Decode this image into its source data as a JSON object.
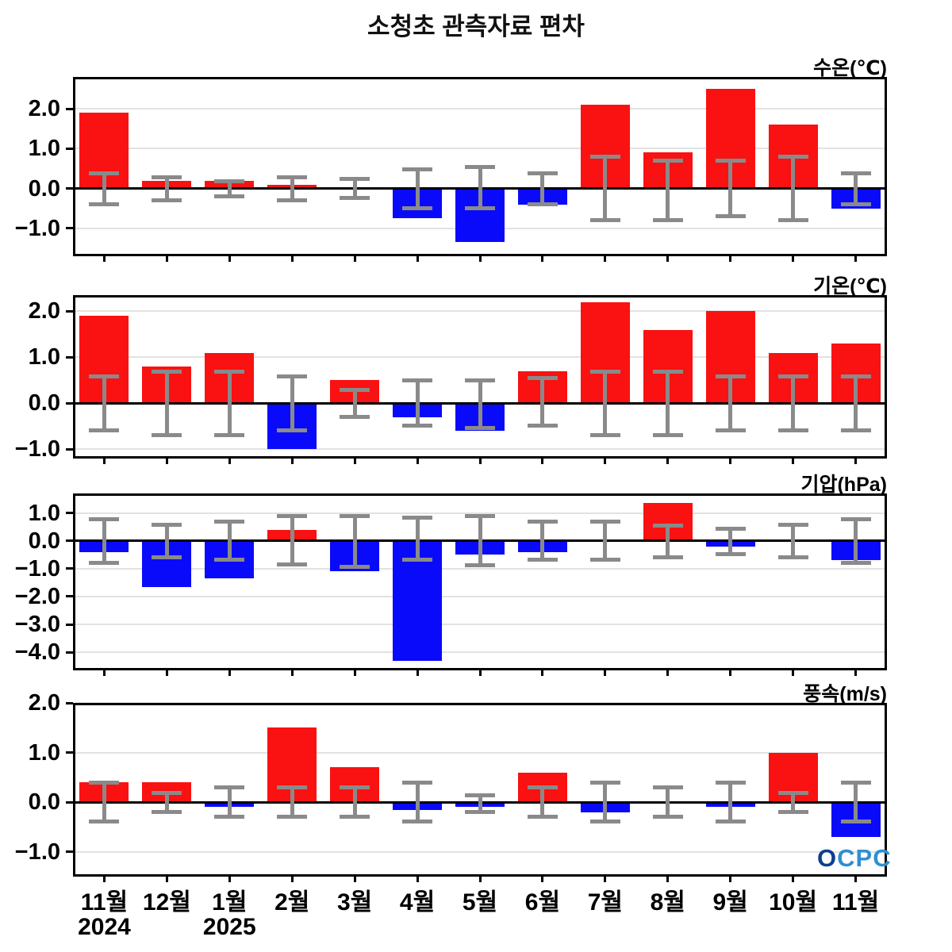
{
  "title": "소청초 관측자료 편차",
  "logo": {
    "text": "OCPC"
  },
  "colors": {
    "positive_bar": "#fa1111",
    "negative_bar": "#0a0afa",
    "zero_bar": "#aaaaaa",
    "error_bar": "#8a8a8a",
    "grid": "#e2e2e2",
    "axis": "#000000",
    "logo_primary": "#0d3f8f",
    "logo_secondary": "#2e8fd2"
  },
  "x_axis": {
    "months": [
      "11월",
      "12월",
      "1월",
      "2월",
      "3월",
      "4월",
      "5월",
      "6월",
      "7월",
      "8월",
      "9월",
      "10월",
      "11월"
    ],
    "years": [
      {
        "label": "2024",
        "month_index": 0
      },
      {
        "label": "2025",
        "month_index": 2
      }
    ]
  },
  "chart_data": [
    {
      "type": "bar",
      "title": "수온(℃)",
      "categories": [
        "11월",
        "12월",
        "1월",
        "2월",
        "3월",
        "4월",
        "5월",
        "6월",
        "7월",
        "8월",
        "9월",
        "10월",
        "11월"
      ],
      "values": [
        1.9,
        0.2,
        0.2,
        0.1,
        0.0,
        -0.75,
        -1.35,
        -0.4,
        2.1,
        0.9,
        2.5,
        1.6,
        -0.5
      ],
      "error_plus": [
        0.4,
        0.3,
        0.2,
        0.3,
        0.25,
        0.5,
        0.55,
        0.4,
        0.8,
        0.7,
        0.7,
        0.8,
        0.4
      ],
      "error_minus": [
        0.4,
        0.3,
        0.2,
        0.3,
        0.25,
        0.5,
        0.5,
        0.4,
        0.8,
        0.8,
        0.7,
        0.8,
        0.4
      ],
      "error_centered_at": 0,
      "yticks": [
        2.0,
        1.0,
        0.0,
        -1.0
      ],
      "ylim": [
        -1.7,
        2.8
      ],
      "grid": true,
      "legend": "none"
    },
    {
      "type": "bar",
      "title": "기온(℃)",
      "categories": [
        "11월",
        "12월",
        "1월",
        "2월",
        "3월",
        "4월",
        "5월",
        "6월",
        "7월",
        "8월",
        "9월",
        "10월",
        "11월"
      ],
      "values": [
        1.9,
        0.8,
        1.1,
        -1.0,
        0.5,
        -0.3,
        -0.6,
        0.7,
        2.2,
        1.6,
        2.0,
        1.1,
        1.3
      ],
      "error_plus": [
        0.6,
        0.7,
        0.7,
        0.6,
        0.3,
        0.5,
        0.5,
        0.55,
        0.7,
        0.7,
        0.6,
        0.6,
        0.6
      ],
      "error_minus": [
        0.6,
        0.7,
        0.7,
        0.6,
        0.3,
        0.5,
        0.55,
        0.5,
        0.7,
        0.7,
        0.6,
        0.6,
        0.6
      ],
      "error_centered_at": 0,
      "yticks": [
        2.0,
        1.0,
        0.0,
        -1.0
      ],
      "ylim": [
        -1.2,
        2.35
      ],
      "grid": true,
      "legend": "none"
    },
    {
      "type": "bar",
      "title": "기압(hPa)",
      "categories": [
        "11월",
        "12월",
        "1월",
        "2월",
        "3월",
        "4월",
        "5월",
        "6월",
        "7월",
        "8월",
        "9월",
        "10월",
        "11월"
      ],
      "values": [
        -0.4,
        -1.65,
        -1.35,
        0.4,
        -1.1,
        -4.3,
        -0.5,
        -0.4,
        0.05,
        1.35,
        -0.2,
        0.05,
        -0.7
      ],
      "error_plus": [
        0.8,
        0.6,
        0.7,
        0.9,
        0.9,
        0.85,
        0.9,
        0.7,
        0.7,
        0.55,
        0.45,
        0.6,
        0.8
      ],
      "error_minus": [
        0.8,
        0.6,
        0.7,
        0.85,
        0.95,
        0.7,
        0.9,
        0.7,
        0.7,
        0.6,
        0.5,
        0.6,
        0.8
      ],
      "error_centered_at": 0,
      "yticks": [
        1.0,
        0.0,
        -1.0,
        -2.0,
        -3.0,
        -4.0
      ],
      "ylim": [
        -4.65,
        1.7
      ],
      "grid": true,
      "legend": "none"
    },
    {
      "type": "bar",
      "title": "풍속(m/s)",
      "categories": [
        "11월",
        "12월",
        "1월",
        "2월",
        "3월",
        "4월",
        "5월",
        "6월",
        "7월",
        "8월",
        "9월",
        "10월",
        "11월"
      ],
      "values": [
        0.4,
        0.4,
        -0.1,
        1.5,
        0.7,
        -0.15,
        -0.1,
        0.6,
        -0.2,
        0.0,
        -0.1,
        1.0,
        -0.7
      ],
      "error_plus": [
        0.4,
        0.2,
        0.3,
        0.3,
        0.3,
        0.4,
        0.15,
        0.3,
        0.4,
        0.3,
        0.4,
        0.2,
        0.4
      ],
      "error_minus": [
        0.4,
        0.2,
        0.3,
        0.3,
        0.3,
        0.4,
        0.2,
        0.3,
        0.4,
        0.3,
        0.4,
        0.2,
        0.4
      ],
      "error_centered_at": 0,
      "yticks": [
        2.0,
        1.0,
        0.0,
        -1.0
      ],
      "ylim": [
        -1.5,
        2.0
      ],
      "grid": true,
      "legend": "none"
    }
  ]
}
